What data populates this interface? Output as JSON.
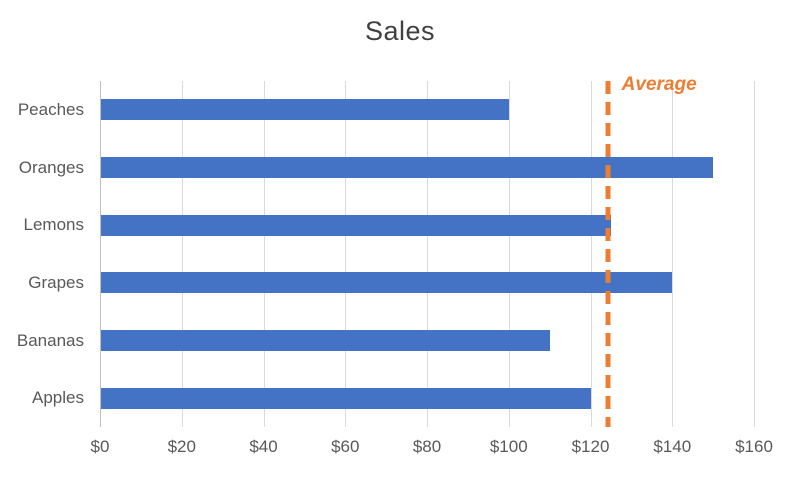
{
  "chart_data": {
    "type": "bar",
    "orientation": "horizontal",
    "title": "Sales",
    "categories": [
      "Peaches",
      "Oranges",
      "Lemons",
      "Grapes",
      "Bananas",
      "Apples"
    ],
    "values": [
      100,
      150,
      125,
      140,
      110,
      120
    ],
    "value_unit": "$",
    "xlim": [
      0,
      160
    ],
    "x_tick_step": 20,
    "x_tick_labels": [
      "$0",
      "$20",
      "$40",
      "$60",
      "$80",
      "$100",
      "$120",
      "$140",
      "$160"
    ],
    "grid": true,
    "legend": "none",
    "annotation": {
      "label": "Average",
      "value": 124.2,
      "style": "vertical-dashed-line"
    }
  },
  "colors": {
    "bar": "#4472C4",
    "annotation": "#ED7D31",
    "gridline": "#D9D9D9",
    "axis_line": "#BFBFBF",
    "axis_text": "#595959",
    "title_text": "#404040",
    "background": "#FFFFFF"
  }
}
